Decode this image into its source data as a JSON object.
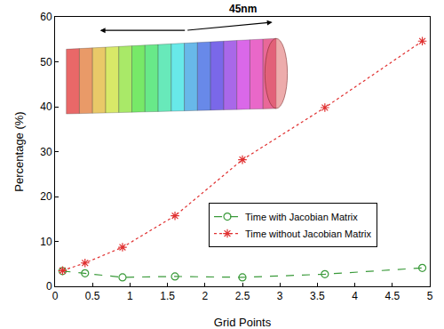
{
  "chart_data": {
    "type": "line",
    "x_label": "Grid Points",
    "y_label": "Percentage (%)",
    "x": [
      0.1,
      0.4,
      0.9,
      1.6,
      2.5,
      3.6,
      4.9
    ],
    "series": [
      {
        "name": "Time with Jacobian Matrix",
        "color": "#3a9a3a",
        "marker": "circle-open",
        "line_style": "dash",
        "values": [
          3.4,
          2.9,
          2.0,
          2.2,
          2.0,
          2.7,
          4.1
        ]
      },
      {
        "name": "Time without Jacobian Matrix",
        "color": "#e03030",
        "marker": "asterisk-open",
        "line_style": "dot",
        "values": [
          3.5,
          5.2,
          8.7,
          15.7,
          28.2,
          39.8,
          54.6
        ]
      }
    ],
    "xlim": [
      0,
      5
    ],
    "xticks": [
      0,
      0.5,
      1,
      1.5,
      2,
      2.5,
      3,
      3.5,
      4,
      4.5,
      5
    ],
    "ylim": [
      0,
      60
    ],
    "yticks": [
      0,
      10,
      20,
      30,
      40,
      50,
      60
    ],
    "grid": false,
    "legend": "right",
    "annotations": [
      "45nm"
    ]
  }
}
